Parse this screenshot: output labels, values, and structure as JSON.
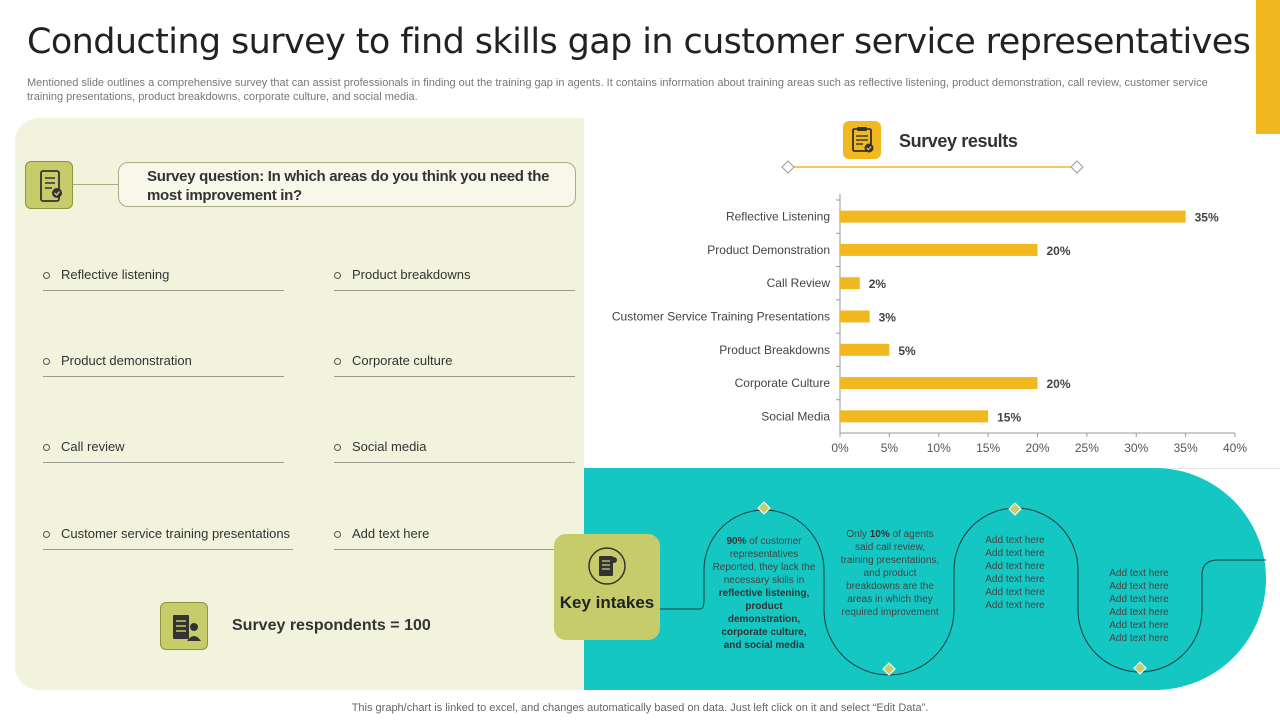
{
  "title": "Conducting survey to find skills gap in customer service representatives",
  "subtitle": "Mentioned slide outlines a comprehensive survey that can assist professionals in finding out the training gap in agents. It contains information about training areas such as reflective listening, product demonstration, call review, customer service training presentations, product breakdowns, corporate culture, and social media.",
  "colors": {
    "accent": "#f2b81f",
    "panel": "#f1f3dc",
    "olive": "#c6cc6a",
    "teal": "#14c7c3"
  },
  "survey": {
    "question": "Survey question: In which areas do you think you need the most improvement in?",
    "question_icon": "mobile-checklist-icon",
    "options": [
      "Reflective  listening",
      "Product breakdowns",
      "Product demonstration",
      "Corporate  culture",
      "Call review",
      "Social media",
      "Customer service training presentations",
      "Add text here"
    ],
    "respondents": "Survey respondents = 100",
    "respondents_icon": "people-checklist-icon"
  },
  "results": {
    "title": "Survey results",
    "icon": "clipboard-check-icon"
  },
  "chart_data": {
    "type": "bar",
    "orientation": "horizontal",
    "title": "Survey results",
    "categories": [
      "Reflective Listening",
      "Product Demonstration",
      "Call Review",
      "Customer Service Training Presentations",
      "Product Breakdowns",
      "Corporate Culture",
      "Social Media"
    ],
    "values": [
      35,
      20,
      2,
      3,
      5,
      20,
      15
    ],
    "value_labels": [
      "35%",
      "20%",
      "2%",
      "3%",
      "5%",
      "20%",
      "15%"
    ],
    "xlim": [
      0,
      40
    ],
    "x_ticks": [
      "0%",
      "5%",
      "10%",
      "15%",
      "20%",
      "25%",
      "30%",
      "35%",
      "40%"
    ],
    "grid": false,
    "legend": "none",
    "bar_color": "#f2b81f"
  },
  "key_intakes": {
    "label": "Key intakes",
    "icon": "document-list-icon",
    "item1": {
      "pre1": "90%",
      "mid1": " of customer representatives Reported, they lack the necessary skills in ",
      "bold": "reflective listening, product demonstration, corporate culture, and social media"
    },
    "item2": {
      "pre": "Only ",
      "bold": "10%",
      "rest": " of agents said call review, training presentations, and product breakdowns are the areas in which they required improvement"
    },
    "item3": [
      "Add text here",
      "Add text here",
      "Add text here",
      "Add text here",
      "Add text here",
      "Add text here"
    ],
    "item4": [
      "Add text here",
      "Add text here",
      "Add text here",
      "Add text here",
      "Add text here",
      "Add text here"
    ]
  },
  "footer": "This graph/chart is linked to excel,  and changes automatically based on data. Just left click on it and select “Edit Data”."
}
